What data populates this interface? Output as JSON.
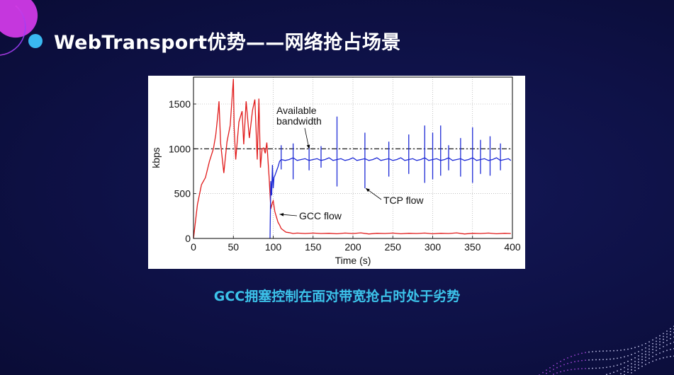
{
  "slide": {
    "title": "WebTransport优势——网络抢占场景",
    "caption": "GCC拥塞控制在面对带宽抢占时处于劣势",
    "colors": {
      "background": "#0e1146",
      "title_dot": "#3ab8f0",
      "caption": "#3cc3ea",
      "title_text": "#ffffff"
    },
    "icons": {
      "title_bullet": "circle-bullet-icon",
      "decor_top_left": "gradient-ring-decoration",
      "decor_bottom_right": "dotted-wave-decoration"
    }
  },
  "chart_data": {
    "type": "line",
    "xlabel": "Time (s)",
    "ylabel": "kbps",
    "xlim": [
      0,
      400
    ],
    "ylim": [
      0,
      1800
    ],
    "xticks": [
      0,
      50,
      100,
      150,
      200,
      250,
      300,
      350,
      400
    ],
    "yticks": [
      0,
      500,
      1000,
      1500
    ],
    "grid": true,
    "annotations": [
      {
        "text": [
          "Available",
          "bandwidth"
        ],
        "points_to": {
          "x": 145,
          "y": 1000
        }
      },
      {
        "text": [
          "TCP flow"
        ],
        "points_to": {
          "x": 215,
          "y": 560
        }
      },
      {
        "text": [
          "GCC flow"
        ],
        "points_to": {
          "x": 105,
          "y": 270
        }
      }
    ],
    "series": [
      {
        "name": "Available bandwidth",
        "color": "#000000",
        "style": "dash-dot",
        "x": [
          0,
          400
        ],
        "y": [
          1000,
          1000
        ]
      },
      {
        "name": "GCC flow",
        "color": "#e11b1b",
        "style": "solid",
        "x": [
          0,
          5,
          10,
          15,
          20,
          25,
          28,
          31,
          32,
          34,
          38,
          42,
          46,
          50,
          51,
          53,
          57,
          61,
          63,
          66,
          70,
          74,
          77,
          80,
          82,
          84,
          86,
          88,
          90,
          92,
          95,
          97,
          99,
          100,
          102,
          104,
          106,
          108,
          110,
          113,
          116,
          120,
          125,
          130,
          140,
          150,
          160,
          170,
          180,
          190,
          200,
          210,
          220,
          230,
          240,
          250,
          260,
          270,
          280,
          290,
          300,
          310,
          320,
          330,
          340,
          350,
          360,
          370,
          380,
          390,
          398
        ],
        "y": [
          0,
          380,
          600,
          680,
          860,
          1000,
          1160,
          1420,
          1530,
          1060,
          730,
          1080,
          1260,
          1780,
          1230,
          880,
          1300,
          1420,
          1050,
          1530,
          1120,
          1430,
          1550,
          880,
          1560,
          790,
          1000,
          1010,
          950,
          1070,
          660,
          330,
          400,
          420,
          300,
          240,
          180,
          150,
          110,
          90,
          70,
          65,
          55,
          60,
          55,
          60,
          55,
          58,
          52,
          60,
          55,
          62,
          50,
          58,
          55,
          60,
          52,
          58,
          55,
          60,
          52,
          58,
          55,
          62,
          50,
          58,
          55,
          60,
          52,
          58,
          55
        ]
      },
      {
        "name": "TCP flow",
        "color": "#1d2ad6",
        "style": "solid",
        "x": [
          96,
          97,
          98,
          99,
          100,
          101,
          102,
          104,
          106,
          108,
          110,
          115,
          120,
          125,
          130,
          135,
          140,
          145,
          150,
          155,
          160,
          165,
          170,
          175,
          180,
          185,
          190,
          195,
          200,
          205,
          210,
          215,
          220,
          225,
          230,
          235,
          240,
          245,
          250,
          255,
          260,
          265,
          270,
          275,
          280,
          285,
          290,
          295,
          300,
          305,
          310,
          315,
          320,
          325,
          330,
          335,
          340,
          345,
          350,
          355,
          360,
          365,
          370,
          375,
          380,
          385,
          390,
          395,
          398
        ],
        "y": [
          0,
          640,
          480,
          820,
          560,
          680,
          700,
          750,
          800,
          860,
          880,
          870,
          880,
          900,
          870,
          880,
          890,
          870,
          880,
          890,
          870,
          880,
          900,
          870,
          880,
          890,
          870,
          880,
          900,
          870,
          880,
          890,
          870,
          880,
          900,
          870,
          880,
          890,
          870,
          880,
          900,
          870,
          880,
          890,
          870,
          880,
          900,
          870,
          880,
          890,
          870,
          880,
          900,
          870,
          880,
          890,
          870,
          880,
          900,
          870,
          880,
          890,
          870,
          880,
          900,
          870,
          880,
          890,
          870
        ]
      },
      {
        "name": "TCP spikes",
        "color": "#1d2ad6",
        "style": "spikes",
        "x": [
          110,
          125,
          145,
          160,
          180,
          215,
          245,
          270,
          290,
          300,
          310,
          320,
          335,
          350,
          360,
          372,
          385
        ],
        "y": [
          1040,
          1060,
          1030,
          1030,
          1360,
          1180,
          1080,
          1160,
          1260,
          1180,
          1260,
          1040,
          1120,
          1240,
          1100,
          1140,
          1060
        ],
        "low": [
          770,
          660,
          760,
          790,
          580,
          560,
          690,
          720,
          620,
          660,
          700,
          760,
          690,
          620,
          720,
          700,
          760
        ]
      }
    ]
  }
}
